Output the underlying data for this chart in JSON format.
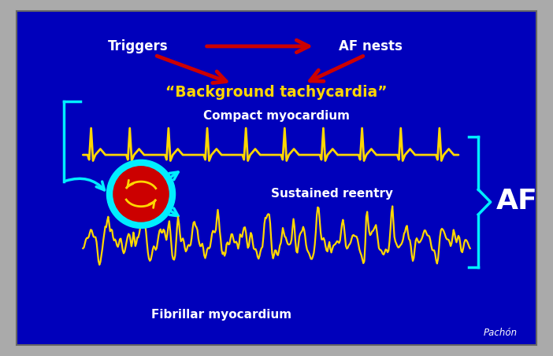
{
  "bg_color": "#0000BB",
  "bg_outer": "#CCCCCC",
  "triggers_text": "Triggers",
  "af_nests_text": "AF nests",
  "background_tachycardia_text": "“Background tachycardia”",
  "compact_myocardium_text": "Compact myocardium",
  "fibrillar_myocardium_text": "Fibrillar myocardium",
  "sustained_reentry_text": "Sustained reentry",
  "af_text": "AF",
  "author_text": "Pachón",
  "yellow": "#FFD700",
  "cyan": "#00EEFF",
  "red": "#CC0000",
  "white": "#FFFFFF"
}
